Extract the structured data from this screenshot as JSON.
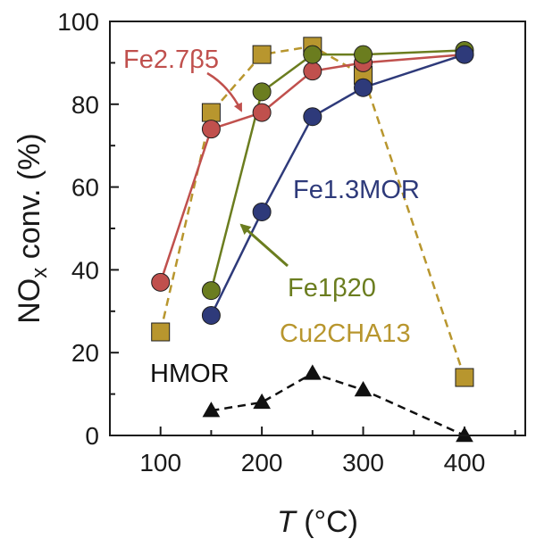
{
  "chart_data": {
    "type": "line",
    "title": "",
    "xlabel": {
      "italic": "T",
      "rest": " (°C)"
    },
    "ylabel": {
      "main": "NO",
      "sub": "x",
      "rest": " conv. (%)"
    },
    "xlim": [
      50,
      460
    ],
    "ylim": [
      0,
      100
    ],
    "xticks": [
      100,
      200,
      300,
      400
    ],
    "yticks": [
      0,
      20,
      40,
      60,
      80,
      100
    ],
    "grid": false,
    "series": [
      {
        "name": "Cu2CHA13",
        "color": "#b8962e",
        "dashed": true,
        "marker": "square",
        "x": [
          100,
          150,
          200,
          250,
          300,
          400
        ],
        "y": [
          25,
          78,
          92,
          94,
          87,
          14
        ]
      },
      {
        "name": "Fe2.7β5",
        "color": "#c0504d",
        "dashed": false,
        "marker": "circle",
        "x": [
          100,
          150,
          200,
          250,
          300,
          400
        ],
        "y": [
          37,
          74,
          78,
          88,
          90,
          92
        ]
      },
      {
        "name": "Fe1β20",
        "color": "#6b7d1f",
        "dashed": false,
        "marker": "circle",
        "x": [
          150,
          200,
          250,
          300,
          400
        ],
        "y": [
          35,
          83,
          92,
          92,
          93
        ]
      },
      {
        "name": "Fe1.3MOR",
        "color": "#2e3a7a",
        "dashed": false,
        "marker": "circle",
        "x": [
          150,
          200,
          250,
          300,
          400
        ],
        "y": [
          29,
          54,
          77,
          84,
          92
        ]
      },
      {
        "name": "HMOR",
        "color": "#111111",
        "dashed": true,
        "marker": "triangle",
        "x": [
          150,
          200,
          250,
          300,
          400
        ],
        "y": [
          6,
          8,
          15,
          11,
          0
        ]
      }
    ]
  }
}
